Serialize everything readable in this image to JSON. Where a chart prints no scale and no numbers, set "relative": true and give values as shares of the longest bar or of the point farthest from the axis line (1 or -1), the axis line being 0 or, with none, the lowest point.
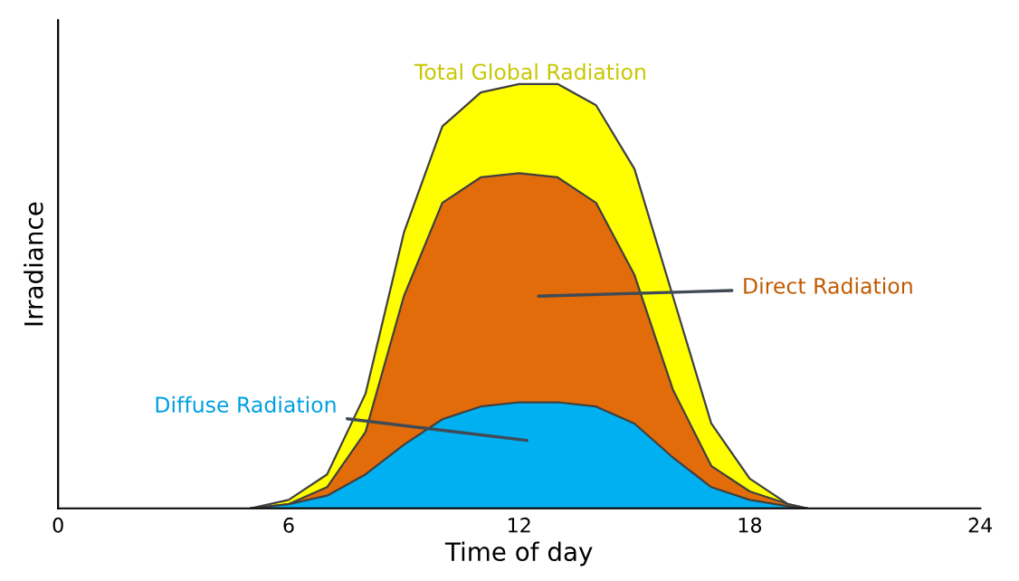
{
  "chart_data": {
    "type": "area",
    "relative": true,
    "xlabel": "Time of day",
    "ylabel": "Irradiance",
    "xlim": [
      0,
      24
    ],
    "xticks": [
      0,
      6,
      12,
      18,
      24
    ],
    "grid": false,
    "legend": false,
    "series": [
      {
        "name": "Total Global Radiation",
        "color": "#ffff00",
        "x": [
          5,
          6,
          7,
          8,
          9,
          10,
          11,
          12,
          13,
          14,
          15,
          16,
          17,
          18,
          19,
          19.5
        ],
        "values": [
          0,
          0.02,
          0.08,
          0.27,
          0.65,
          0.9,
          0.98,
          1.0,
          1.0,
          0.95,
          0.8,
          0.5,
          0.2,
          0.07,
          0.01,
          0
        ]
      },
      {
        "name": "Direct Radiation",
        "color": "#e36c0a",
        "x": [
          5,
          6,
          7,
          8,
          9,
          10,
          11,
          12,
          13,
          14,
          15,
          16,
          17,
          18,
          19,
          19.5
        ],
        "values": [
          0,
          0.01,
          0.05,
          0.18,
          0.5,
          0.72,
          0.78,
          0.79,
          0.78,
          0.72,
          0.55,
          0.28,
          0.1,
          0.04,
          0.01,
          0
        ]
      },
      {
        "name": "Diffuse Radiation",
        "color": "#00b0f0",
        "x": [
          5,
          6,
          7,
          8,
          9,
          10,
          11,
          12,
          13,
          14,
          15,
          16,
          17,
          18,
          19,
          19.5
        ],
        "values": [
          0,
          0.01,
          0.03,
          0.08,
          0.15,
          0.21,
          0.24,
          0.25,
          0.25,
          0.24,
          0.2,
          0.12,
          0.05,
          0.02,
          0.005,
          0
        ]
      }
    ]
  }
}
